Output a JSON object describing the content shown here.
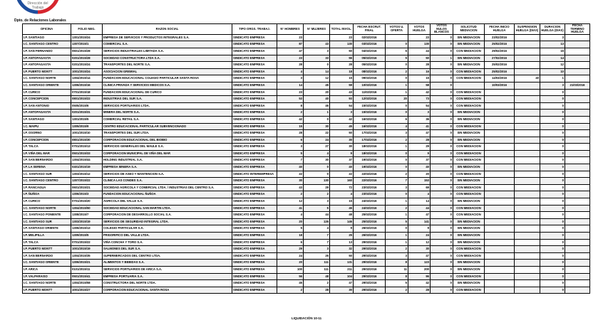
{
  "logo": {
    "text": "Dirección del Trabajo",
    "colors": {
      "red": "#d6262f",
      "blue": "#1f4e9c"
    }
  },
  "department": "Dpto. de Relaciones Laborales",
  "columns": [
    "OFICINA",
    "FOLIO NEG.",
    "RAZON SOCIAL",
    "TIPO ORGS. TRABAJ.",
    "N° HOMBRES",
    "N° MUJERES",
    "TOTAL INVOL.",
    "FECHA ESCRUT. FINAL",
    "VOTOS U. OFERTA",
    "VOTOS HUELGA",
    "VOTOS NULOS BLANCOS",
    "SOLICITUD MEDIACION",
    "FECHA INICIO HUELGA",
    "SUSPENSION HUELGA (DIAS)",
    "DURACION HUELGA (DIAS)",
    "FECHA TERMINO HUELGA"
  ],
  "rows": [
    [
      "I.P. SANTIAGO",
      "1301/2015/24",
      "EMPRESA DE SERVICIOS Y PRODUCTOS INTEGRALES S.A.",
      "SINDICATO EMPRESA",
      "23",
      "",
      "23",
      "02/02/2016",
      "",
      "23",
      "0",
      "SIN MEDIACION",
      "23/02/2016",
      "",
      "3",
      ""
    ],
    [
      "I.C. SANTIAGO CENTRO",
      "1307/2015/1",
      "COMERCIAL S.A.",
      "SINDICATO EMPRESA",
      "87",
      "43",
      "130",
      "03/02/2016",
      "0",
      "130",
      "0",
      "SIN MEDIACION",
      "25/02/2016",
      "",
      "13",
      ""
    ],
    [
      "I.P. SAN FERNANDO",
      "0601/2015/28",
      "SERVICIOS INDUSTRIALES LIMITADA S.A.",
      "SINDICATO EMPRESA",
      "47",
      "3",
      "50",
      "04/02/2016",
      "6",
      "44",
      "0",
      "CON MEDIACION",
      "29/02/2016",
      "",
      "15",
      ""
    ],
    [
      "I.P. ANTOFAGASTA",
      "0201/2015/28",
      "SOCIEDAD CONSTRUCTORA LTDA S.A.",
      "SINDICATO EMPRESA",
      "23",
      "33",
      "56",
      "05/02/2016",
      "5",
      "50",
      "1",
      "SIN MEDIACION",
      "27/02/2016",
      "",
      "14",
      ""
    ],
    [
      "I.P. ANTOFAGASTA",
      "0201/2015/24",
      "TRANSPORTES DEL NORTE S.A.",
      "SINDICATO EMPRESA",
      "28",
      "0",
      "28",
      "05/02/2016",
      "0",
      "28",
      "0",
      "SIN MEDIACION",
      "25/02/2016",
      "",
      "12",
      ""
    ],
    [
      "I.P. PUERTO MONTT",
      "1001/2015/24",
      "ASOCIACION GREMIAL",
      "SINDICATO EMPRESA",
      "4",
      "14",
      "18",
      "08/02/2016",
      "2",
      "16",
      "0",
      "CON MEDIACION",
      "25/02/2016",
      "",
      "10",
      ""
    ],
    [
      "I.C. SANTIAGO NORTE",
      "1304/2015/14",
      "FUNDACION EDUCACIONAL COLEGIO PARTICULAR SANTA ROSA",
      "SINDICATO EMPRESA",
      "3",
      "12",
      "15",
      "09/02/2016",
      "0",
      "15",
      "0",
      "CON MEDIACION",
      "14/03/2016",
      "40",
      "1",
      ""
    ],
    [
      "I.C. SANTIAGO ORIENTE",
      "1306/2015/16",
      "CLINICA PRIVADA Y SERVICIOS MEDICOS S.A.",
      "SINDICATO EMPRESA",
      "14",
      "45",
      "59",
      "10/02/2016",
      "1",
      "58",
      "0",
      "",
      "10/03/2016",
      "",
      "3",
      "21/03/2016"
    ],
    [
      "I.P. CURICO",
      "0701/2015/18",
      "FUNDACION EDUCACIONAL DE CURICO",
      "SINDICATO EMPRESA",
      "23",
      "20",
      "43",
      "11/02/2016",
      "1",
      "42",
      "0",
      "CON MEDIACION",
      "",
      "",
      "0",
      ""
    ],
    [
      "I.P. CONCEPCION",
      "0801/2015/22",
      "INDUSTRIAS DEL SUR S.A.",
      "SINDICATO EMPRESA",
      "53",
      "40",
      "93",
      "12/02/2016",
      "20",
      "73",
      "0",
      "CON MEDIACION",
      "",
      "",
      "0",
      ""
    ],
    [
      "I.P. SAN ANTONIO",
      "0505/2015/6",
      "SERVICIOS PORTUARIOS LTDA.",
      "SINDICATO EMPRESA",
      "8",
      "46",
      "54",
      "15/02/2016",
      "0",
      "54",
      "0",
      "CON MEDIACION",
      "",
      "",
      "0",
      ""
    ],
    [
      "I.P. ANTOFAGASTA",
      "0201/2015/31",
      "MINERA DEL NORTE S.A.",
      "SINDICATO EMPRESA",
      "2",
      "1",
      "3",
      "15/02/2016",
      "0",
      "3",
      "0",
      "SIN MEDIACION",
      "",
      "",
      "0",
      ""
    ],
    [
      "I.P. SANTIAGO",
      "1301/2015/5",
      "COMERCIAL RETAIL S.A.",
      "SINDICATO EMPRESA",
      "42",
      "0",
      "42",
      "16/02/2016",
      "6",
      "36",
      "0",
      "SIN MEDIACION",
      "",
      "",
      "0",
      ""
    ],
    [
      "I.C. MAIPU",
      "1305/2015/9",
      "CENTRO EDUCACIONAL PARTICULAR SUBVENCIONADO",
      "SINDICATO EMPRESA",
      "15",
      "30",
      "45",
      "16/02/2016",
      "4",
      "41",
      "0",
      "CON MEDIACION",
      "",
      "",
      "0",
      ""
    ],
    [
      "I.P. OSORNO",
      "1001/2015/10",
      "TRANSPORTES DEL SUR LTDA.",
      "SINDICATO EMPRESA",
      "28",
      "22",
      "50",
      "17/02/2016",
      "3",
      "47",
      "0",
      "SIN MEDIACION",
      "",
      "",
      "0",
      ""
    ],
    [
      "I.P. CONCEPCION",
      "0801/2015/30",
      "CORPORACION EDUCACIONAL DEL BIOBIO",
      "SINDICATO EMPRESA",
      "6",
      "24",
      "30",
      "17/02/2016",
      "2",
      "28",
      "0",
      "SIN MEDIACION",
      "",
      "",
      "0",
      ""
    ],
    [
      "I.P. TALCA",
      "0701/2015/13",
      "SERVICIOS GENERALES DEL MAULE S.A.",
      "SINDICATO EMPRESA",
      "3",
      "27",
      "30",
      "18/02/2016",
      "1",
      "29",
      "0",
      "CON MEDIACION",
      "",
      "",
      "0",
      ""
    ],
    [
      "I.P. VIÑA DEL MAR",
      "0501/2015/33",
      "CORPORACION MUNICIPAL DE VIÑA DEL MAR",
      "SINDICATO EMPRESA",
      "5",
      "4",
      "9",
      "18/02/2016",
      "0",
      "9",
      "0",
      "CON MEDIACION",
      "",
      "",
      "0",
      ""
    ],
    [
      "I.P. SAN BERNARDO",
      "1304/2015/44",
      "HOLDING INDUSTRIAL S.A.",
      "SINDICATO EMPRESA",
      "7",
      "30",
      "37",
      "19/02/2016",
      "0",
      "37",
      "0",
      "CON MEDIACION",
      "",
      "",
      "0",
      ""
    ],
    [
      "I.P. LA SERENA",
      "0401/2015/19",
      "EMPRESA MINERA S.A.",
      "SINDICATO EMPRESA",
      "40",
      "0",
      "40",
      "19/02/2016",
      "0",
      "40",
      "0",
      "SIN MEDIACION",
      "",
      "",
      "0",
      ""
    ],
    [
      "I.C. SANTIAGO SUR",
      "1303/2015/12",
      "SERVICIOS DE ASEO Y MANTENCION S.A.",
      "SINDICATO INTEREMPRESA",
      "22",
      "0",
      "22",
      "22/02/2016",
      "2",
      "20",
      "0",
      "CON MEDIACION",
      "",
      "",
      "0",
      ""
    ],
    [
      "I.C. SANTIAGO CENTRO",
      "1307/2015/22",
      "CLINICA LAS CONDES S.A.",
      "SINDICATO EMPRESA",
      "30",
      "130",
      "160",
      "22/02/2016",
      "7",
      "153",
      "0",
      "SIN MEDIACION",
      "",
      "",
      "0",
      ""
    ],
    [
      "I.P. RANCAGUA",
      "0601/2015/21",
      "SOCIEDAD AGRICOLA Y COMERCIAL LTDA. / INDUSTRIAS DEL CENTRO S.A.",
      "SINDICATO EMPRESA",
      "43",
      "29",
      "72",
      "23/02/2016",
      "3",
      "69",
      "0",
      "CON MEDIACION",
      "",
      "",
      "0",
      ""
    ],
    [
      "I.P. ÑUÑOA",
      "1306/2015/3",
      "FUNDACION EDUCACIONAL ÑUÑOA",
      "SINDICATO EMPRESA",
      "2",
      "2",
      "4",
      "23/02/2016",
      "0",
      "4",
      "0",
      "CON MEDIACION",
      "",
      "",
      "0",
      ""
    ],
    [
      "I.P. CURICO",
      "0701/2015/20",
      "AGRICOLA DEL VALLE S.A.",
      "SINDICATO EMPRESA",
      "12",
      "3",
      "15",
      "24/02/2016",
      "1",
      "14",
      "0",
      "SIN MEDIACION",
      "",
      "",
      "0",
      ""
    ],
    [
      "I.C. SANTIAGO NORTE",
      "1304/2015/50",
      "SOCIEDAD EDUCACIONAL SAN MARTIN LTDA.",
      "SINDICATO EMPRESA",
      "41",
      "5",
      "46",
      "24/02/2016",
      "2",
      "44",
      "0",
      "CON MEDIACION",
      "",
      "",
      "0",
      ""
    ],
    [
      "I.C. SANTIAGO PONIENTE",
      "1308/2015/7",
      "CORPORACION DE DESARROLLO SOCIAL S.A.",
      "SINDICATO EMPRESA",
      "4",
      "44",
      "48",
      "25/02/2016",
      "1",
      "47",
      "0",
      "CON MEDIACION",
      "",
      "",
      "0",
      ""
    ],
    [
      "I.C. SANTIAGO SUR",
      "1303/2015/19",
      "SERVICIOS DE SEGURIDAD INTEGRAL LTDA.",
      "SINDICATO EMPRESA",
      "20",
      "126",
      "146",
      "25/02/2016",
      "5",
      "141",
      "0",
      "SIN MEDIACION",
      "",
      "",
      "0",
      ""
    ],
    [
      "I.P. SANTIAGO ORIENTE",
      "1306/2015/13",
      "COLEGIO PARTICULAR S.A.",
      "SINDICATO EMPRESA",
      "5",
      "4",
      "9",
      "26/02/2016",
      "0",
      "9",
      "0",
      "SIN MEDIACION",
      "",
      "",
      "0",
      ""
    ],
    [
      "I.P. MELIPILLA",
      "1309/2015/5",
      "FRIGORIFICO DEL VALLE LTDA.",
      "SINDICATO EMPRESA",
      "18",
      "7",
      "25",
      "26/02/2016",
      "1",
      "24",
      "0",
      "SIN MEDIACION",
      "",
      "",
      "0",
      ""
    ],
    [
      "I.P. TALCA",
      "0701/2015/22",
      "VIÑA CONCHA Y TORO S.A.",
      "SINDICATO EMPRESA",
      "6",
      "7",
      "13",
      "29/02/2016",
      "1",
      "12",
      "0",
      "SIN MEDIACION",
      "",
      "",
      "0",
      ""
    ],
    [
      "I.P. PUERTO MONTT",
      "1001/2015/19",
      "SALMONES DEL SUR S.A.",
      "SINDICATO EMPRESA",
      "29",
      "3",
      "32",
      "29/02/2016",
      "2",
      "30",
      "0",
      "CON MEDIACION",
      "",
      "",
      "0",
      ""
    ],
    [
      "I.P. SAN BERNARDO",
      "1304/2015/35",
      "SUPERMERCADOS DEL CENTRO LTDA.",
      "SINDICATO EMPRESA",
      "24",
      "26",
      "50",
      "29/02/2016",
      "3",
      "47",
      "0",
      "CON MEDIACION",
      "",
      "",
      "0",
      ""
    ],
    [
      "I.C. SANTIAGO ORIENTE",
      "1306/2015/21",
      "ALIMENTOS Y BEBIDAS S.A.",
      "SINDICATO EMPRESA",
      "20",
      "111",
      "131",
      "29/02/2016",
      "8",
      "123",
      "0",
      "SIN MEDIACION",
      "",
      "",
      "0",
      ""
    ],
    [
      "I.P. ARICA",
      "0101/2015/11",
      "SERVICIOS PORTUARIOS DE ARICA S.A.",
      "SINDICATO EMPRESA",
      "100",
      "111",
      "211",
      "29/02/2016",
      "11",
      "200",
      "0",
      "SIN MEDIACION",
      "",
      "",
      "0",
      ""
    ],
    [
      "I.P. VALPARAISO",
      "0501/2015/41",
      "EMPRESA PORTUARIA S.A.",
      "SINDICATO EMPRESA",
      "56",
      "48",
      "104",
      "29/02/2016",
      "8",
      "96",
      "0",
      "CON MEDIACION",
      "",
      "",
      "0",
      ""
    ],
    [
      "I.C. SANTIAGO NORTE",
      "1304/2015/58",
      "CONSTRUCTORA DEL NORTE LTDA.",
      "SINDICATO EMPRESA",
      "45",
      "2",
      "47",
      "29/02/2016",
      "5",
      "42",
      "0",
      "SIN MEDIACION",
      "",
      "",
      "0",
      ""
    ],
    [
      "I.P. PUERTO MONTT",
      "1001/2015/27",
      "CORPORACION EDUCACIONAL SANTA ROSA",
      "SINDICATO EMPRESA",
      "2",
      "28",
      "30",
      "29/02/2016",
      "2",
      "28",
      "0",
      "CON MEDIACION",
      "",
      "",
      "0",
      ""
    ]
  ],
  "footer": "LIQUIDACIÓN 10-11"
}
